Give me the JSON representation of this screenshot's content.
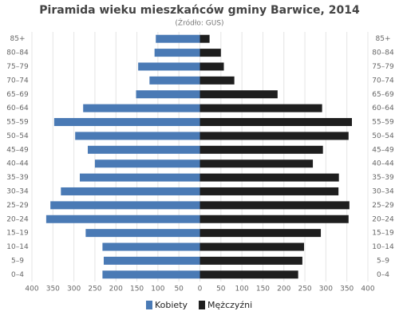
{
  "chart_data": {
    "type": "pyramid",
    "title": "Piramida wieku mieszkańców gminy Barwice, 2014",
    "subtitle": "(Źródło: GUS)",
    "categories": [
      "85+",
      "80–84",
      "75–79",
      "70–74",
      "65–69",
      "60–64",
      "55–59",
      "50–54",
      "45–49",
      "40–44",
      "35–39",
      "30–34",
      "25–29",
      "20–24",
      "15–19",
      "10–14",
      "5–9",
      "0–4"
    ],
    "series": [
      {
        "name": "Kobiety",
        "color": "#4a7ab5",
        "values": [
          -105,
          -108,
          -147,
          -120,
          -152,
          -278,
          -347,
          -297,
          -267,
          -250,
          -286,
          -331,
          -356,
          -366,
          -272,
          -232,
          -229,
          -232
        ]
      },
      {
        "name": "Mężczyźni",
        "color": "#1e1e1e",
        "values": [
          23,
          50,
          57,
          82,
          185,
          291,
          362,
          354,
          293,
          269,
          331,
          330,
          356,
          354,
          288,
          248,
          244,
          234
        ]
      }
    ],
    "xlim": [
      -400,
      400
    ],
    "xticks": [
      {
        "value": -400,
        "label": "400"
      },
      {
        "value": -350,
        "label": "350"
      },
      {
        "value": -300,
        "label": "300"
      },
      {
        "value": -250,
        "label": "250"
      },
      {
        "value": -200,
        "label": "200"
      },
      {
        "value": -150,
        "label": "150"
      },
      {
        "value": -100,
        "label": "100"
      },
      {
        "value": -50,
        "label": "50"
      },
      0,
      50,
      100,
      150,
      200,
      250,
      300,
      350,
      400
    ],
    "grid": true
  }
}
